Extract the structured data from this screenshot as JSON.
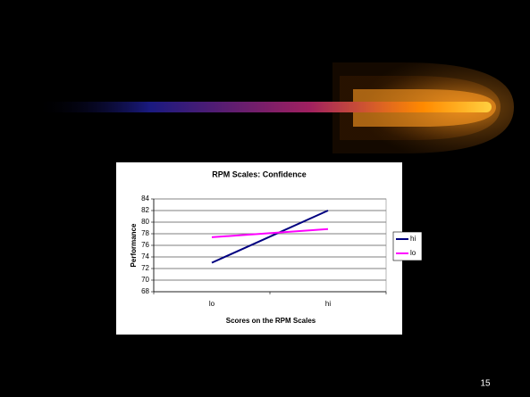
{
  "chart_data": {
    "type": "line",
    "title": "RPM Scales: Confidence",
    "y_label": "Performance",
    "x_label": "Scores on the RPM Scales",
    "categories": [
      "lo",
      "hi"
    ],
    "series": [
      {
        "name": "hi",
        "color": "#000080",
        "values": [
          73,
          82
        ]
      },
      {
        "name": "lo",
        "color": "#ff00ff",
        "values": [
          77.4,
          78.8
        ]
      }
    ],
    "ylim": [
      68,
      84
    ],
    "yticks": [
      68,
      70,
      72,
      74,
      76,
      78,
      80,
      82,
      84
    ],
    "grid": true,
    "legend": "right"
  },
  "slide_number": "15"
}
